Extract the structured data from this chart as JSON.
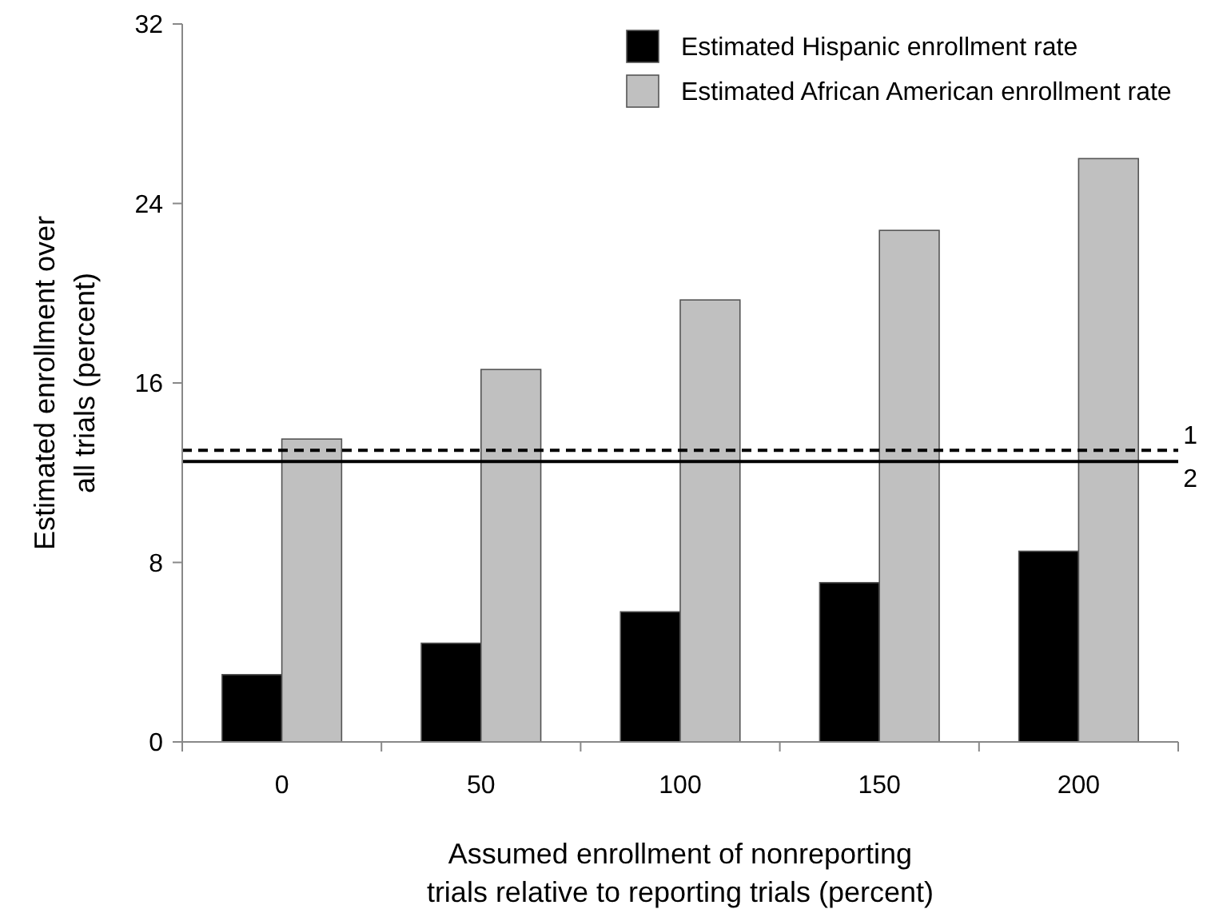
{
  "chart_data": {
    "type": "bar",
    "xlabel": "Assumed enrollment of nonreporting\ntrials relative to reporting trials (percent)",
    "ylabel": "Estimated enrollment over\nall trials (percent)",
    "categories": [
      "0",
      "50",
      "100",
      "150",
      "200"
    ],
    "series": [
      {
        "name": "Estimated Hispanic enrollment rate",
        "color": "#000000",
        "values": [
          3.0,
          4.4,
          5.8,
          7.1,
          8.5
        ]
      },
      {
        "name": "Estimated African American enrollment rate",
        "color": "#c0c0c0",
        "values": [
          13.5,
          16.6,
          19.7,
          22.8,
          26.0
        ]
      }
    ],
    "ylim": [
      0,
      32
    ],
    "yticks": [
      0,
      8,
      16,
      24,
      32
    ],
    "grid": false,
    "legend": "top right",
    "ref_lines": [
      {
        "axis": "y",
        "value": 13.0,
        "line_style": "dashed",
        "color": "#000000"
      },
      {
        "axis": "y",
        "value": 12.5,
        "line_style": "solid",
        "color": "#000000"
      }
    ],
    "annotations": [
      "1",
      "2"
    ]
  }
}
